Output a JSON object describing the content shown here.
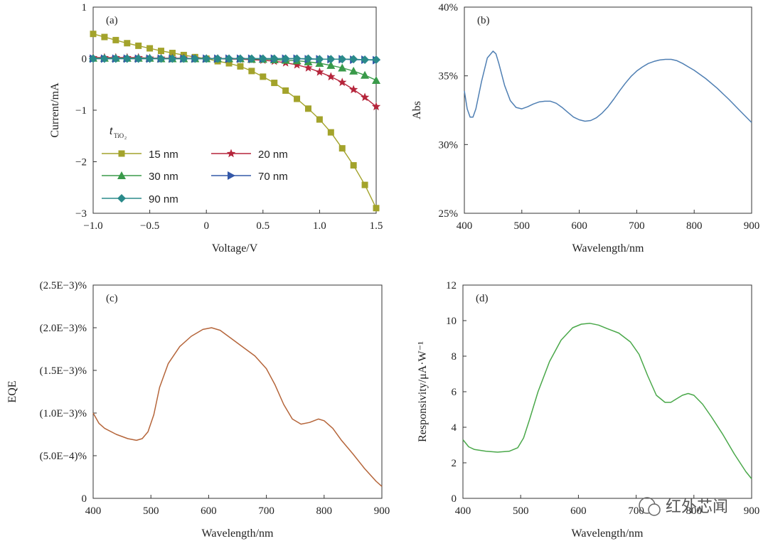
{
  "watermark": {
    "text": "红外芯闻"
  },
  "chart_data": [
    {
      "panel": "(a)",
      "type": "line",
      "xlabel": "Voltage/V",
      "ylabel": "Current/mA",
      "xlim": [
        -1.0,
        1.5
      ],
      "ylim": [
        -3,
        1
      ],
      "xticks": [
        -1.0,
        -0.5,
        0,
        0.5,
        1.0,
        1.5
      ],
      "xtick_labels": [
        "−1.0",
        "−0.5",
        "0",
        "0.5",
        "1.0",
        "1.5"
      ],
      "yticks": [
        1,
        0,
        -1,
        -2,
        -3
      ],
      "ytick_labels": [
        "1",
        "0",
        "−1",
        "−2",
        "−3"
      ],
      "legend_title": "t",
      "legend_title_sub": "TiO",
      "legend_title_sub2": "2",
      "x": [
        -1.0,
        -0.9,
        -0.8,
        -0.7,
        -0.6,
        -0.5,
        -0.4,
        -0.3,
        -0.2,
        -0.1,
        0.0,
        0.1,
        0.2,
        0.3,
        0.4,
        0.5,
        0.6,
        0.7,
        0.8,
        0.9,
        1.0,
        1.1,
        1.2,
        1.3,
        1.4,
        1.5
      ],
      "series": [
        {
          "name": "15 nm",
          "color": "#a3a32b",
          "marker": "square",
          "values": [
            0.48,
            0.42,
            0.36,
            0.3,
            0.25,
            0.2,
            0.15,
            0.11,
            0.07,
            0.03,
            0.0,
            -0.05,
            -0.09,
            -0.15,
            -0.24,
            -0.35,
            -0.47,
            -0.62,
            -0.78,
            -0.97,
            -1.18,
            -1.43,
            -1.74,
            -2.07,
            -2.45,
            -2.9
          ]
        },
        {
          "name": "20 nm",
          "color": "#b5253b",
          "marker": "star",
          "values": [
            0.02,
            0.02,
            0.02,
            0.02,
            0.02,
            0.01,
            0.01,
            0.01,
            0.01,
            0.0,
            0.0,
            0.0,
            -0.01,
            -0.01,
            -0.02,
            -0.03,
            -0.05,
            -0.08,
            -0.12,
            -0.18,
            -0.26,
            -0.35,
            -0.46,
            -0.6,
            -0.75,
            -0.93
          ]
        },
        {
          "name": "30 nm",
          "color": "#3a9a4a",
          "marker": "triangle",
          "values": [
            0.01,
            0.01,
            0.01,
            0.01,
            0.01,
            0.01,
            0.0,
            0.0,
            0.0,
            0.0,
            0.0,
            0.0,
            0.0,
            0.0,
            -0.01,
            -0.01,
            -0.02,
            -0.03,
            -0.04,
            -0.06,
            -0.09,
            -0.13,
            -0.18,
            -0.24,
            -0.32,
            -0.42
          ]
        },
        {
          "name": "70 nm",
          "color": "#3458a8",
          "marker": "triangle-right",
          "values": [
            0.0,
            0.0,
            0.0,
            0.0,
            0.0,
            0.0,
            0.0,
            0.0,
            0.0,
            0.0,
            0.0,
            0.0,
            0.0,
            0.0,
            0.0,
            0.0,
            0.0,
            0.0,
            0.0,
            -0.01,
            -0.01,
            -0.01,
            -0.01,
            -0.02,
            -0.02,
            -0.03
          ]
        },
        {
          "name": "90 nm",
          "color": "#2a8a8a",
          "marker": "diamond",
          "values": [
            0.0,
            0.0,
            0.0,
            0.0,
            0.0,
            0.0,
            0.0,
            0.0,
            0.0,
            0.0,
            0.0,
            0.0,
            0.0,
            0.0,
            0.0,
            0.0,
            0.0,
            0.0,
            0.0,
            0.0,
            -0.01,
            -0.01,
            -0.01,
            -0.01,
            -0.02,
            -0.02
          ]
        }
      ]
    },
    {
      "panel": "(b)",
      "type": "line",
      "xlabel": "Wavelength/nm",
      "ylabel": "Abs",
      "xlim": [
        400,
        900
      ],
      "ylim": [
        25,
        40
      ],
      "xticks": [
        400,
        500,
        600,
        700,
        800,
        900
      ],
      "xtick_labels": [
        "400",
        "500",
        "600",
        "700",
        "800",
        "900"
      ],
      "yticks": [
        40,
        35,
        30,
        25
      ],
      "ytick_labels": [
        "40%",
        "35%",
        "30%",
        "25%"
      ],
      "series": [
        {
          "name": "Abs",
          "color": "#4f7fb3",
          "x": [
            400,
            405,
            410,
            415,
            420,
            430,
            440,
            450,
            455,
            460,
            470,
            480,
            490,
            500,
            510,
            520,
            530,
            540,
            550,
            560,
            570,
            580,
            590,
            600,
            610,
            620,
            630,
            640,
            650,
            660,
            670,
            680,
            690,
            700,
            710,
            720,
            730,
            740,
            750,
            760,
            770,
            780,
            790,
            800,
            820,
            840,
            860,
            880,
            900
          ],
          "values": [
            33.9,
            32.6,
            32.0,
            32.0,
            32.6,
            34.6,
            36.3,
            36.8,
            36.6,
            35.9,
            34.3,
            33.2,
            32.7,
            32.6,
            32.75,
            32.95,
            33.1,
            33.15,
            33.15,
            33.0,
            32.7,
            32.35,
            32.0,
            31.8,
            31.7,
            31.75,
            31.95,
            32.3,
            32.75,
            33.3,
            33.9,
            34.45,
            34.95,
            35.35,
            35.65,
            35.9,
            36.05,
            36.15,
            36.2,
            36.2,
            36.1,
            35.9,
            35.65,
            35.4,
            34.8,
            34.1,
            33.3,
            32.45,
            31.6
          ]
        }
      ]
    },
    {
      "panel": "(c)",
      "type": "line",
      "xlabel": "Wavelength/nm",
      "ylabel": "EQE",
      "xlim": [
        400,
        900
      ],
      "ylim": [
        0,
        0.0025
      ],
      "xticks": [
        400,
        500,
        600,
        700,
        800,
        900
      ],
      "xtick_labels": [
        "400",
        "500",
        "600",
        "700",
        "800",
        "900"
      ],
      "yticks": [
        0.0025,
        0.002,
        0.0015,
        0.001,
        0.0005,
        0
      ],
      "ytick_labels": [
        "(2.5E−3)%",
        "(2.0E−3)%",
        "(1.5E−3)%",
        "(1.0E−3)%",
        "(5.0E−4)%",
        "0"
      ],
      "series": [
        {
          "name": "EQE",
          "color": "#b5653a",
          "x": [
            400,
            410,
            420,
            440,
            460,
            475,
            485,
            495,
            505,
            515,
            530,
            550,
            570,
            590,
            605,
            620,
            640,
            660,
            680,
            700,
            715,
            730,
            745,
            760,
            775,
            790,
            800,
            815,
            830,
            850,
            870,
            890,
            900
          ],
          "values": [
            0.001,
            0.00088,
            0.00082,
            0.00075,
            0.0007,
            0.00068,
            0.0007,
            0.00078,
            0.00098,
            0.0013,
            0.00158,
            0.00178,
            0.0019,
            0.00198,
            0.002,
            0.00197,
            0.00187,
            0.00177,
            0.00167,
            0.00152,
            0.00133,
            0.0011,
            0.00093,
            0.00087,
            0.00089,
            0.00093,
            0.00091,
            0.00082,
            0.00068,
            0.00052,
            0.00035,
            0.0002,
            0.00014
          ]
        }
      ]
    },
    {
      "panel": "(d)",
      "type": "line",
      "xlabel": "Wavelength/nm",
      "ylabel": "Responsivity/μA·W⁻¹",
      "xlim": [
        400,
        900
      ],
      "ylim": [
        0,
        12
      ],
      "xticks": [
        400,
        500,
        600,
        700,
        800,
        900
      ],
      "xtick_labels": [
        "400",
        "500",
        "600",
        "700",
        "800",
        "900"
      ],
      "yticks": [
        12,
        10,
        8,
        6,
        4,
        2,
        0
      ],
      "ytick_labels": [
        "12",
        "10",
        "8",
        "6",
        "4",
        "2",
        "0"
      ],
      "series": [
        {
          "name": "Responsivity",
          "color": "#4aa84a",
          "x": [
            400,
            410,
            420,
            440,
            460,
            480,
            495,
            505,
            515,
            530,
            550,
            570,
            590,
            605,
            620,
            635,
            650,
            670,
            690,
            705,
            720,
            735,
            750,
            760,
            770,
            780,
            790,
            800,
            815,
            830,
            850,
            870,
            890,
            900
          ],
          "values": [
            3.3,
            2.9,
            2.75,
            2.65,
            2.6,
            2.65,
            2.85,
            3.4,
            4.4,
            6.0,
            7.7,
            8.9,
            9.6,
            9.8,
            9.85,
            9.75,
            9.55,
            9.3,
            8.8,
            8.1,
            6.9,
            5.8,
            5.4,
            5.4,
            5.6,
            5.8,
            5.9,
            5.8,
            5.3,
            4.6,
            3.6,
            2.5,
            1.5,
            1.1
          ]
        }
      ]
    }
  ]
}
